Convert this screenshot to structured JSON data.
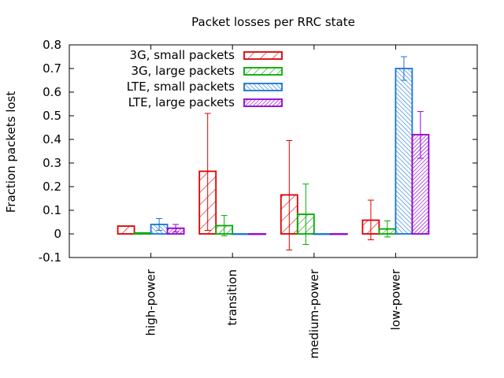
{
  "chart_data": {
    "type": "bar",
    "title": "Packet losses per RRC state",
    "xlabel": "",
    "ylabel": "Fraction packets lost",
    "categories": [
      "high-power",
      "transition",
      "medium-power",
      "low-power"
    ],
    "ylim": [
      -0.1,
      0.8
    ],
    "yticks": [
      "-0.1",
      "0",
      "0.1",
      "0.2",
      "0.3",
      "0.4",
      "0.5",
      "0.6",
      "0.7",
      "0.8"
    ],
    "grid": false,
    "legend_position": "top-left",
    "series": [
      {
        "name": "3G, small packets",
        "color": "#dd0000",
        "pattern": "sparse diagonal hatch",
        "values": [
          0.033,
          0.265,
          0.165,
          0.058
        ],
        "err_low": [
          0.033,
          0.015,
          -0.068,
          -0.025
        ],
        "err_high": [
          0.033,
          0.51,
          0.395,
          0.143
        ]
      },
      {
        "name": "3G, large packets",
        "color": "#00aa00",
        "pattern": "diagonal hatch",
        "values": [
          0.004,
          0.035,
          0.083,
          0.021
        ],
        "err_low": [
          0.004,
          -0.008,
          -0.045,
          -0.013
        ],
        "err_high": [
          0.004,
          0.078,
          0.211,
          0.055
        ]
      },
      {
        "name": "LTE, small packets",
        "color": "#1a75d2",
        "pattern": "dense reverse hatch",
        "values": [
          0.04,
          0.0,
          0.0,
          0.7
        ],
        "err_low": [
          0.015,
          0.0,
          0.0,
          0.65
        ],
        "err_high": [
          0.065,
          0.0,
          0.0,
          0.75
        ]
      },
      {
        "name": "LTE, large packets",
        "color": "#9400d3",
        "pattern": "dense cross hatch",
        "values": [
          0.024,
          0.0,
          0.0,
          0.42
        ],
        "err_low": [
          0.008,
          0.0,
          0.0,
          0.32
        ],
        "err_high": [
          0.04,
          0.0,
          0.0,
          0.518
        ]
      }
    ]
  }
}
